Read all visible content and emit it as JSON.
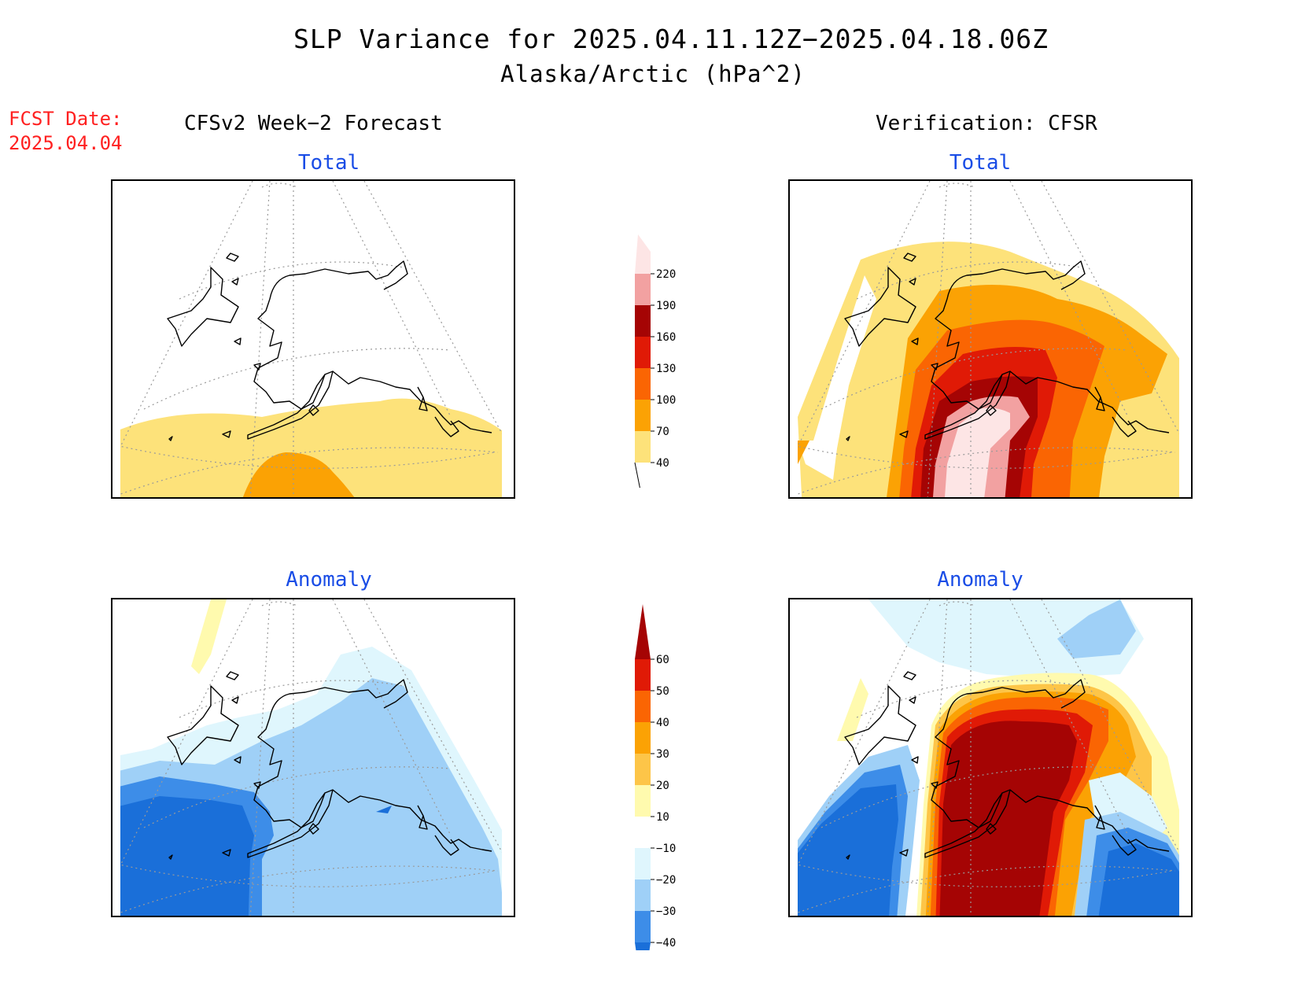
{
  "header": {
    "title": "SLP Variance for 2025.04.11.12Z−2025.04.18.06Z",
    "subtitle": "Alaska/Arctic (hPa^2)"
  },
  "forecast_date": {
    "label": "FCST Date:",
    "value": "2025.04.04"
  },
  "columns": {
    "left": "CFSv2 Week−2 Forecast",
    "right": "Verification: CFSR"
  },
  "panels": {
    "top_left": "Total",
    "top_right": "Total",
    "bottom_left": "Anomaly",
    "bottom_right": "Anomaly"
  },
  "colorbars": {
    "total": {
      "labels": [
        "40",
        "70",
        "100",
        "130",
        "160",
        "190",
        "220"
      ],
      "colors": [
        "#fde27a",
        "#fba204",
        "#fa6503",
        "#e01a06",
        "#a50404",
        "#f2a1a1",
        "#fde5e5"
      ]
    },
    "anomaly": {
      "labels": [
        "−40",
        "−30",
        "−20",
        "−10",
        "10",
        "20",
        "30",
        "40",
        "50",
        "60"
      ],
      "colors": [
        "#1a6fd9",
        "#3d8de8",
        "#9fd0f7",
        "#dff6fd",
        "#ffffff",
        "#fffaae",
        "#fdc548",
        "#fba204",
        "#fa6503",
        "#e01a06",
        "#a50404"
      ]
    }
  }
}
